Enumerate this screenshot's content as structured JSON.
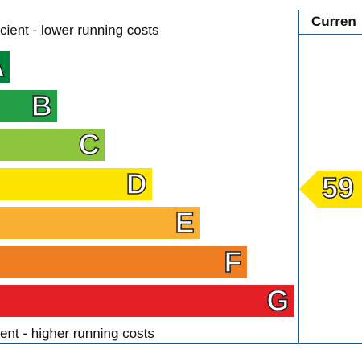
{
  "header": {
    "top_text": "cient - lower running costs",
    "bottom_text": "ent - higher running costs",
    "current_label": "Curren"
  },
  "colors": {
    "A": "#00843d",
    "B": "#23a047",
    "C": "#8cc63f",
    "D": "#ffe400",
    "E": "#fbb034",
    "F": "#ef7d22",
    "G": "#e31e24",
    "border": "#1a5d8f"
  },
  "chart_data": {
    "type": "bar",
    "categories": [
      "A",
      "B",
      "C",
      "D",
      "E",
      "F",
      "G"
    ],
    "current": {
      "value": "59",
      "band": "D",
      "color": "#ffe400"
    }
  }
}
